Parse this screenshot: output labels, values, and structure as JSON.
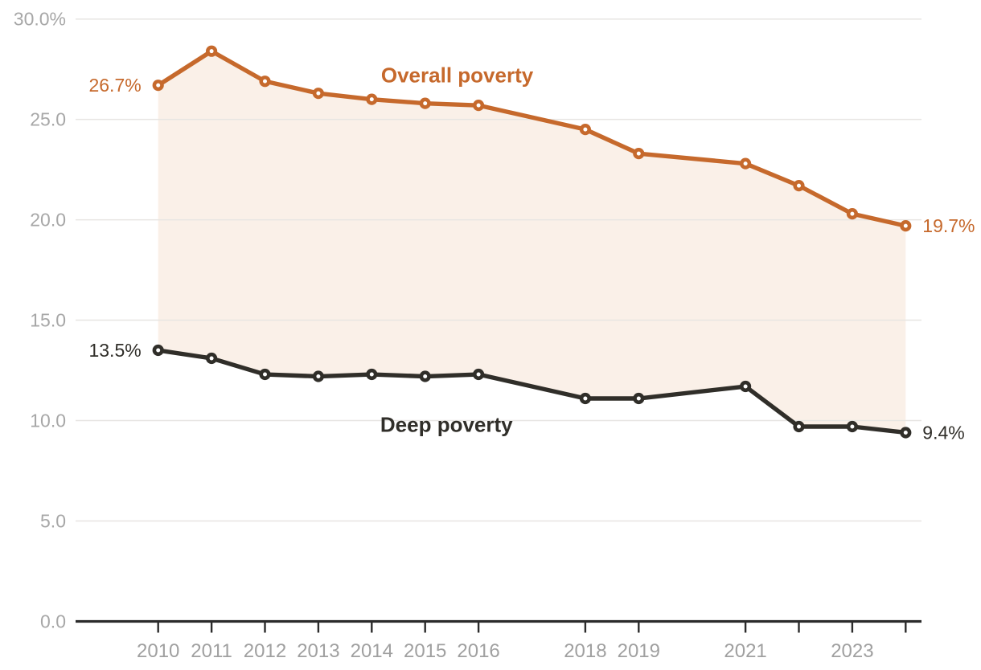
{
  "chart_data": {
    "type": "line",
    "x": [
      2010,
      2011,
      2012,
      2013,
      2014,
      2015,
      2016,
      2018,
      2019,
      2021,
      2022,
      2023,
      2024
    ],
    "series": [
      {
        "name": "Overall poverty",
        "color": "#c6692c",
        "values": [
          26.7,
          28.4,
          26.9,
          26.3,
          26.0,
          25.8,
          25.7,
          24.5,
          23.3,
          22.8,
          21.7,
          20.3,
          19.7
        ]
      },
      {
        "name": "Deep poverty",
        "color": "#302e29",
        "values": [
          13.5,
          13.1,
          12.3,
          12.2,
          12.3,
          12.2,
          12.3,
          11.1,
          11.1,
          11.7,
          9.7,
          9.7,
          9.4
        ]
      }
    ],
    "band_fill_between_series": true,
    "band_fill_color": "#faf0e8",
    "grid": "horizontal",
    "legend_position": "inline-labels",
    "ylim": [
      0,
      30
    ],
    "y_ticks": [
      {
        "value": 30,
        "label": "30.0%"
      },
      {
        "value": 25,
        "label": "25.0"
      },
      {
        "value": 20,
        "label": "20.0"
      },
      {
        "value": 15,
        "label": "15.0"
      },
      {
        "value": 10,
        "label": "10.0"
      },
      {
        "value": 5,
        "label": "5.0"
      },
      {
        "value": 0,
        "label": "0.0"
      }
    ],
    "x_ticks": [
      {
        "year": 2010,
        "label": "2010"
      },
      {
        "year": 2011,
        "label": "2011"
      },
      {
        "year": 2012,
        "label": "2012"
      },
      {
        "year": 2013,
        "label": "2013"
      },
      {
        "year": 2014,
        "label": "2014"
      },
      {
        "year": 2015,
        "label": "2015"
      },
      {
        "year": 2016,
        "label": "2016"
      },
      {
        "year": 2018,
        "label": "2018"
      },
      {
        "year": 2019,
        "label": "2019"
      },
      {
        "year": 2021,
        "label": "2021"
      },
      {
        "year": 2022,
        "label": ""
      },
      {
        "year": 2023,
        "label": "2023"
      },
      {
        "year": 2024,
        "label": ""
      }
    ],
    "point_labels": [
      {
        "series": 0,
        "year": 2010,
        "text": "26.7%",
        "anchor": "left"
      },
      {
        "series": 0,
        "year": 2024,
        "text": "19.7%",
        "anchor": "right"
      },
      {
        "series": 1,
        "year": 2010,
        "text": "13.5%",
        "anchor": "left"
      },
      {
        "series": 1,
        "year": 2024,
        "text": "9.4%",
        "anchor": "right"
      }
    ],
    "series_labels": [
      {
        "text": "Overall poverty",
        "year": 2015.6,
        "value": 27.2,
        "series": 0
      },
      {
        "text": "Deep poverty",
        "year": 2015.4,
        "value": 9.8,
        "series": 1
      }
    ]
  },
  "colors": {
    "background": "#ffffff",
    "grid": "#e7e5e2",
    "axis": "#2b2b2b",
    "tick_label": "#a7a7a7"
  }
}
